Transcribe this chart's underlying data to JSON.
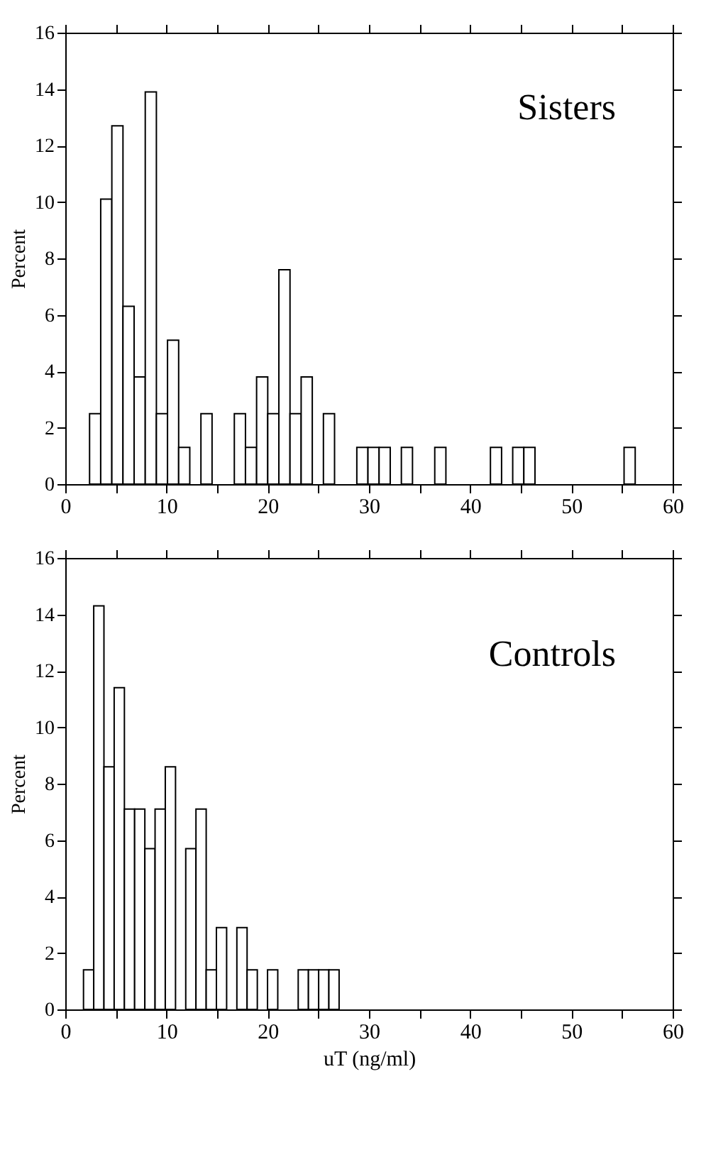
{
  "chart_data": [
    {
      "type": "histogram",
      "title": "Sisters",
      "ylabel": "Percent",
      "bins": [
        2.4,
        3.5,
        4.6,
        5.7,
        6.8,
        7.9,
        9.0,
        10.1,
        11.2,
        12.3,
        13.4,
        14.5,
        15.6,
        16.7,
        17.8,
        18.9,
        20.0,
        21.1,
        22.2,
        23.3,
        24.4,
        25.5,
        26.6,
        27.7,
        28.8,
        29.9,
        31.0,
        32.1,
        33.2,
        34.3,
        35.4,
        36.5,
        37.6,
        38.7,
        39.8,
        40.9,
        42.0,
        43.1,
        44.2,
        45.3,
        46.4,
        47.5,
        48.6,
        49.7,
        50.8,
        51.9,
        53.0,
        54.1,
        55.2,
        56.3,
        57.4
      ],
      "values": [
        2.5,
        10.1,
        12.7,
        6.3,
        3.8,
        13.9,
        2.5,
        5.1,
        1.3,
        0,
        2.5,
        0,
        0,
        2.5,
        1.3,
        3.8,
        2.5,
        7.6,
        2.5,
        3.8,
        0,
        2.5,
        0,
        0,
        1.3,
        1.3,
        1.3,
        0,
        1.3,
        0,
        0,
        1.3,
        0,
        0,
        0,
        0,
        1.3,
        0,
        1.3,
        1.3,
        0,
        0,
        0,
        0,
        0,
        0,
        0,
        0,
        1.3,
        0
      ],
      "color": "#ffffff",
      "xlim": [
        0,
        60
      ],
      "ylim": [
        0,
        16
      ],
      "xticks": [
        0,
        {
          "value": 5,
          "label": null
        },
        10,
        {
          "value": 15,
          "label": null
        },
        20,
        {
          "value": 25,
          "label": null
        },
        30,
        {
          "value": 35,
          "label": null
        },
        40,
        {
          "value": 45,
          "label": null
        },
        50,
        {
          "value": 55,
          "label": null
        },
        60
      ],
      "yticks": [
        0,
        2,
        4,
        6,
        8,
        10,
        12,
        14,
        16
      ],
      "grid": false
    },
    {
      "type": "histogram",
      "title": "Controls",
      "ylabel": "Percent",
      "xlabel": "uT (ng/ml)",
      "bins": [
        1.8,
        2.81,
        3.82,
        4.83,
        5.84,
        6.85,
        7.86,
        8.87,
        9.88,
        10.89,
        11.9,
        12.91,
        13.92,
        14.93,
        15.94,
        16.95,
        17.96,
        18.97,
        19.98,
        20.99,
        22.0,
        23.01,
        24.02,
        25.03,
        26.04,
        27.05
      ],
      "values": [
        1.4,
        14.3,
        8.6,
        11.4,
        7.1,
        7.1,
        5.7,
        7.1,
        8.6,
        0,
        5.7,
        7.1,
        1.4,
        2.9,
        0,
        2.9,
        1.4,
        0,
        1.4,
        0,
        0,
        1.4,
        1.4,
        1.4,
        1.4
      ],
      "color": "#ffffff",
      "xlim": [
        0,
        60
      ],
      "ylim": [
        0,
        16
      ],
      "xticks": [
        0,
        {
          "value": 5,
          "label": null
        },
        10,
        {
          "value": 15,
          "label": null
        },
        20,
        {
          "value": 25,
          "label": null
        },
        30,
        {
          "value": 35,
          "label": null
        },
        40,
        {
          "value": 45,
          "label": null
        },
        50,
        {
          "value": 55,
          "label": null
        },
        60
      ],
      "yticks": [
        0,
        2,
        4,
        6,
        8,
        10,
        12,
        14,
        16
      ],
      "grid": false
    }
  ]
}
